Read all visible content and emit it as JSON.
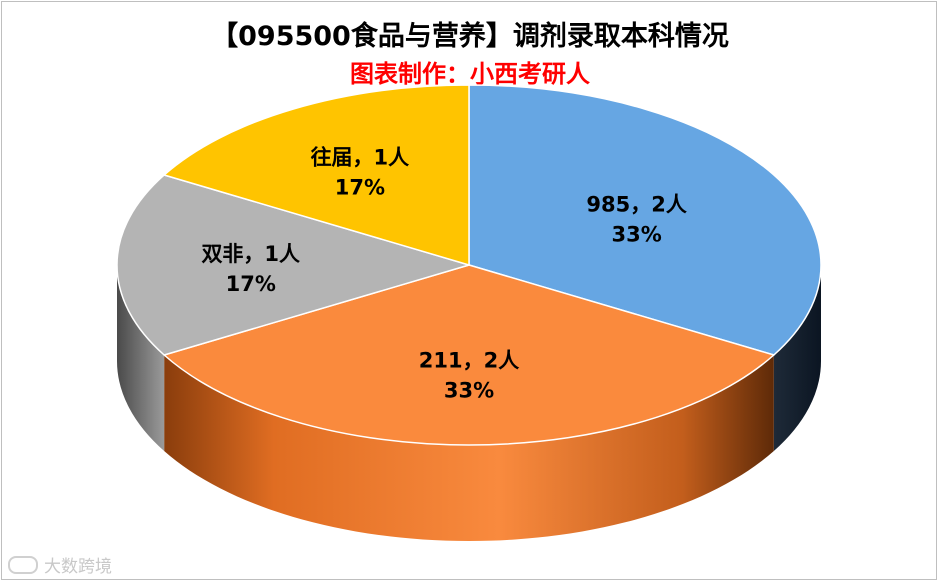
{
  "title": "【095500食品与营养】调剂录取本科情况",
  "subtitle": "图表制作：小西考研人",
  "watermark": "大数跨境",
  "chart_data": {
    "type": "pie",
    "style": "3d",
    "title": "【095500食品与营养】调剂录取本科情况",
    "series": [
      {
        "name": "985",
        "value": 2,
        "percent": "33%",
        "label": "985，2人",
        "color": "#66a6e3"
      },
      {
        "name": "211",
        "value": 2,
        "percent": "33%",
        "label": "211，2人",
        "color": "#fa8a3d"
      },
      {
        "name": "双非",
        "value": 1,
        "percent": "17%",
        "label": "双非，1人",
        "color": "#b4b4b4"
      },
      {
        "name": "往届",
        "value": 1,
        "percent": "17%",
        "label": "往届，1人",
        "color": "#ffc400"
      }
    ]
  }
}
